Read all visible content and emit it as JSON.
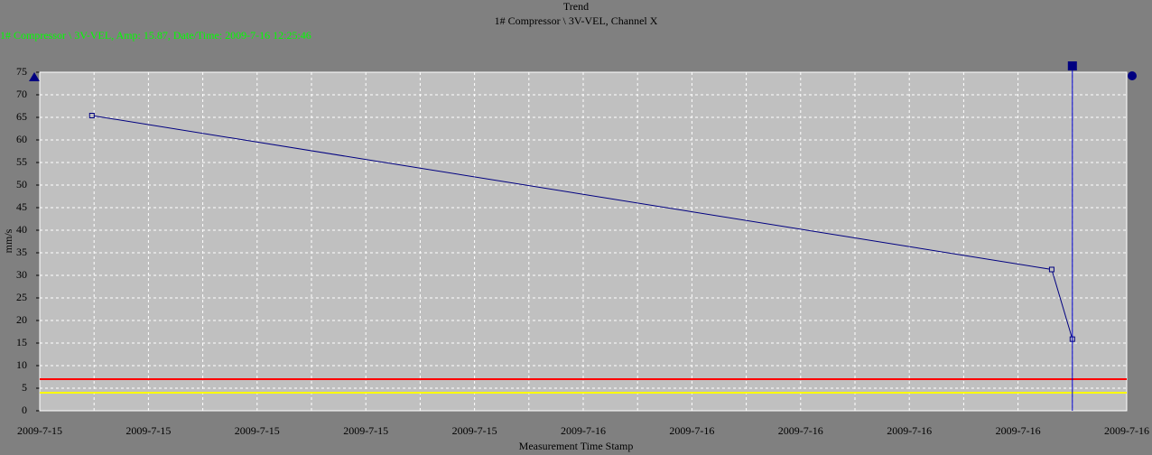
{
  "chart_data": {
    "type": "line",
    "title": "Trend",
    "subtitle": "1# Compressor \\ 3V-VEL, Channel X",
    "readout": "1# Compressor \\ 3V-VEL, Amp: 15.87, Date/Time: 2009-7-16 12:25:46",
    "x_label": "Measurement Time Stamp",
    "y_label": "mm/s",
    "x": [
      0.48,
      9.31,
      9.5
    ],
    "series": [
      {
        "color": "#000080",
        "values": [
          65.4,
          31.3,
          15.87
        ]
      }
    ],
    "xlim": [
      0,
      10
    ],
    "xticks": [
      {
        "value": 0,
        "label": "2009-7-15"
      },
      {
        "value": 1,
        "label": "2009-7-15"
      },
      {
        "value": 2,
        "label": "2009-7-15"
      },
      {
        "value": 3,
        "label": "2009-7-15"
      },
      {
        "value": 4,
        "label": "2009-7-15"
      },
      {
        "value": 5,
        "label": "2009-7-16"
      },
      {
        "value": 6,
        "label": "2009-7-16"
      },
      {
        "value": 7,
        "label": "2009-7-16"
      },
      {
        "value": 8,
        "label": "2009-7-16"
      },
      {
        "value": 9,
        "label": "2009-7-16"
      },
      {
        "value": 10,
        "label": "2009-7-16"
      }
    ],
    "ylim": [
      0,
      75
    ],
    "yticks": [
      0,
      5,
      10,
      15,
      20,
      25,
      30,
      35,
      40,
      45,
      50,
      55,
      60,
      65,
      70,
      75
    ],
    "grid": true,
    "thresholds": [
      {
        "value": 7,
        "color": "#ff0000"
      },
      {
        "value": 4,
        "color": "#ffff00"
      }
    ],
    "cursor": {
      "x": 9.5,
      "color": "#0000cc"
    }
  }
}
